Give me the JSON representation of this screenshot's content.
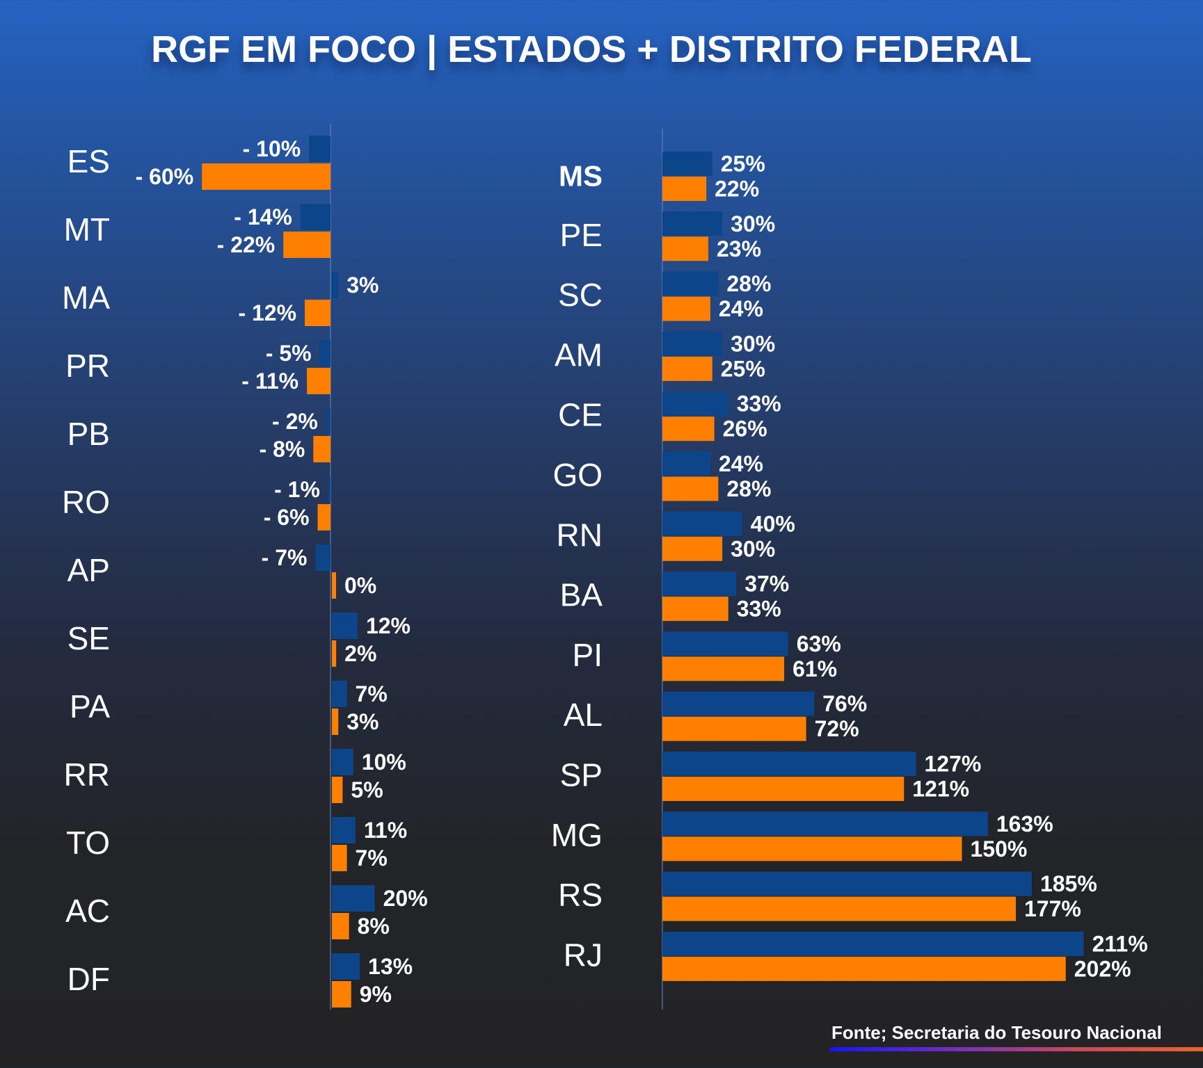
{
  "title": "RGF EM FOCO | ESTADOS + DISTRITO FEDERAL",
  "source": "Fonte; Secretaria do Tesouro Nacional",
  "colors": {
    "series_a": "#0c4589",
    "series_b": "#ff8000",
    "axis": "#5d7fb8"
  },
  "chart_data": [
    {
      "type": "bar",
      "orientation": "horizontal",
      "panel": "left",
      "title": "",
      "xlabel": "",
      "ylabel": "",
      "categories": [
        "ES",
        "MT",
        "MA",
        "PR",
        "PB",
        "RO",
        "AP",
        "SE",
        "PA",
        "RR",
        "TO",
        "AC",
        "DF"
      ],
      "series": [
        {
          "name": "blue",
          "color": "#0c4589",
          "values": [
            -10,
            -14,
            3,
            -5,
            -2,
            -1,
            -7,
            12,
            7,
            10,
            11,
            20,
            13
          ],
          "labels": [
            "- 10%",
            "- 14%",
            "3%",
            "- 5%",
            "- 2%",
            "- 1%",
            "- 7%",
            "12%",
            "7%",
            "10%",
            "11%",
            "20%",
            "13%"
          ]
        },
        {
          "name": "orange",
          "color": "#ff8000",
          "values": [
            -60,
            -22,
            -12,
            -11,
            -8,
            -6,
            0,
            2,
            3,
            5,
            7,
            8,
            9
          ],
          "labels": [
            "- 60%",
            "- 22%",
            "- 12%",
            "- 11%",
            "- 8%",
            "- 6%",
            "0%",
            "2%",
            "3%",
            "5%",
            "7%",
            "8%",
            "9%"
          ]
        }
      ],
      "xlim": [
        -60,
        50
      ],
      "grid": false,
      "legend": "none"
    },
    {
      "type": "bar",
      "orientation": "horizontal",
      "panel": "right",
      "title": "",
      "xlabel": "",
      "ylabel": "",
      "categories": [
        "MS",
        "PE",
        "SC",
        "AM",
        "CE",
        "GO",
        "RN",
        "BA",
        "PI",
        "AL",
        "SP",
        "MG",
        "RS",
        "RJ"
      ],
      "highlight": "MS",
      "series": [
        {
          "name": "blue",
          "color": "#0c4589",
          "values": [
            25,
            30,
            28,
            30,
            33,
            24,
            40,
            37,
            63,
            76,
            127,
            163,
            185,
            211
          ],
          "labels": [
            "25%",
            "30%",
            "28%",
            "30%",
            "33%",
            "24%",
            "40%",
            "37%",
            "63%",
            "76%",
            "127%",
            "163%",
            "185%",
            "211%"
          ]
        },
        {
          "name": "orange",
          "color": "#ff8000",
          "values": [
            22,
            23,
            24,
            25,
            26,
            28,
            30,
            33,
            61,
            72,
            121,
            150,
            177,
            202
          ],
          "labels": [
            "22%",
            "23%",
            "24%",
            "25%",
            "26%",
            "28%",
            "30%",
            "33%",
            "61%",
            "72%",
            "121%",
            "150%",
            "177%",
            "202%"
          ]
        }
      ],
      "xlim": [
        0,
        240
      ],
      "grid": false,
      "legend": "none"
    }
  ]
}
